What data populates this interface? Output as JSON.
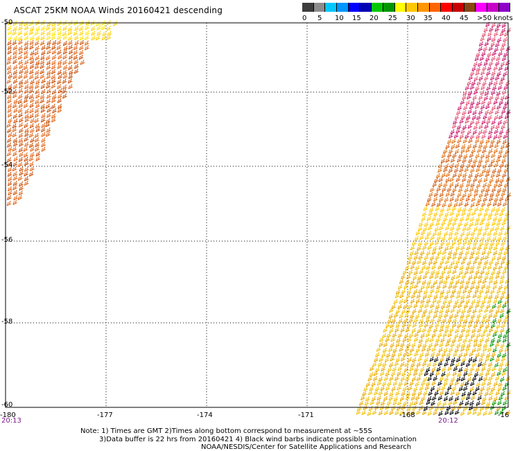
{
  "title": "ASCAT 25KM NOAA Winds 20160421 descending",
  "legend": {
    "colors": [
      "#3c3c3c",
      "#8c8c8c",
      "#00c8ff",
      "#0096ff",
      "#0000ff",
      "#0000b4",
      "#00c800",
      "#009600",
      "#ffff00",
      "#ffc800",
      "#ff9600",
      "#ff6400",
      "#ff0000",
      "#c80000",
      "#8b4513",
      "#ff00ff",
      "#c800c8",
      "#8c00c8"
    ],
    "labels": [
      "0",
      "5",
      "10",
      "15",
      "20",
      "25",
      "30",
      "35",
      "40",
      "45",
      ">50 knots"
    ]
  },
  "lat_labels": [
    "-50",
    "-52",
    "-54",
    "-56",
    "-58",
    "-60"
  ],
  "lon_labels": [
    "-180",
    "-177",
    "-174",
    "-171",
    "-168",
    "-16"
  ],
  "time_labels": [
    "20:13",
    "20:12"
  ],
  "notes": [
    "Note: 1) Times are GMT 2)Times along bottom correspond to measurement at ~55S",
    "3)Data buffer is 22 hrs from 20160421 4) Black wind barbs indicate possible contamination",
    "NOAA/NESDIS/Center for Satellite Applications and Research"
  ]
}
